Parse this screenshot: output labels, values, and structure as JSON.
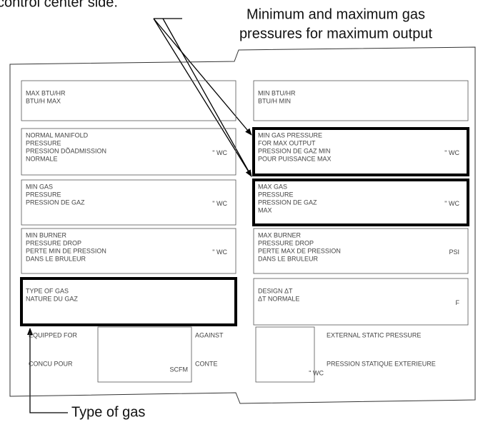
{
  "caption_top": "control center side.",
  "callout_pressures": [
    "Minimum and maximum gas",
    "pressures for maximum output"
  ],
  "callout_type": "Type of gas",
  "left_cells": [
    {
      "lines": [
        "MAX BTU/HR",
        "BTU/H MAX"
      ],
      "highlighted": false
    },
    {
      "lines": [
        "NORMAL MANIFOLD",
        "PRESSURE",
        "PRESSION DÕADMISSION",
        "NORMALE"
      ],
      "unit": "\" WC",
      "highlighted": false
    },
    {
      "lines": [
        "MIN GAS",
        "PRESSURE",
        "PRESSION DE GAZ"
      ],
      "unit": "\" WC",
      "highlighted": false
    },
    {
      "lines": [
        "MIN BURNER",
        "PRESSURE DROP",
        "PERTE MIN DE PRESSION",
        "DANS LE BRULEUR"
      ],
      "unit": "\" WC",
      "highlighted": false
    },
    {
      "lines": [
        "TYPE OF GAS",
        "NATURE DU GAZ"
      ],
      "highlighted": true
    }
  ],
  "right_cells": [
    {
      "lines": [
        "MIN BTU/HR",
        "BTU/H MIN"
      ],
      "highlighted": false
    },
    {
      "lines": [
        "MIN GAS PRESSURE",
        "FOR MAX OUTPUT",
        "PRESSION DE GAZ MIN",
        "POUR PUISSANCE MAX"
      ],
      "unit": "\" WC",
      "highlighted": true
    },
    {
      "lines": [
        "MAX GAS",
        "PRESSURE",
        "PRESSION DE GAZ",
        "MAX"
      ],
      "unit": "\" WC",
      "highlighted": true
    },
    {
      "lines": [
        "MAX BURNER",
        "PRESSURE DROP",
        "PERTE MAX DE PRESSION",
        "DANS LE BRULEUR"
      ],
      "unit": "PSI",
      "highlighted": false
    },
    {
      "lines": [
        "DESIGN ΔT",
        "ΔT NORMALE"
      ],
      "unit": "F",
      "highlighted": false
    }
  ],
  "bottom": {
    "equipped_for": "EQUIPPED FOR",
    "concu_pour": "CONCU POUR",
    "scfm": "SCFM",
    "against": "AGAINST",
    "conte": "CONTE",
    "wc": "\" WC",
    "external_static": "EXTERNAL STATIC PRESSURE",
    "pression_statique": "PRESSION STATIQUE EXTERIEURE"
  }
}
